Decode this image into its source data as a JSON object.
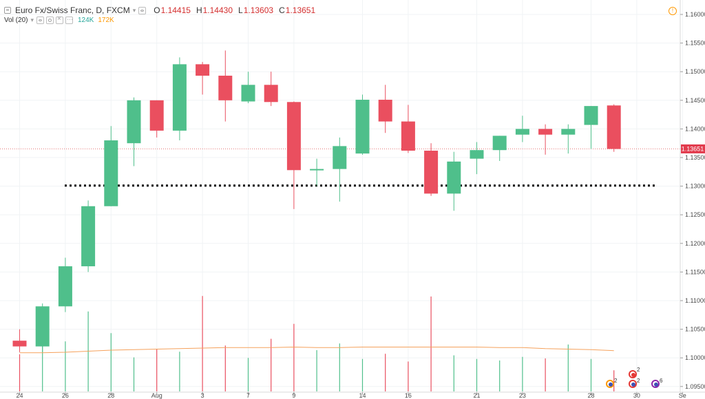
{
  "header": {
    "symbol_title": "Euro Fx/Swiss Franc, D, FXCM",
    "open_label": "O",
    "open_value": "1.14415",
    "high_label": "H",
    "high_value": "1.14430",
    "low_label": "L",
    "low_value": "1.13603",
    "close_label": "C",
    "close_value": "1.13651",
    "volume_indicator": "Vol (20)",
    "volume_value": "124K",
    "volume_ma_value": "172K"
  },
  "colors": {
    "up": "#4fbf8b",
    "down": "#ea4f5f",
    "vol_ma": "#f5a15b",
    "price_line": "#e57373",
    "support": "#000000",
    "accent": "#ff9800"
  },
  "icons": [
    "collapse-toggle-icon",
    "chevron-down-icon",
    "eye-icon",
    "gear-icon",
    "close-icon",
    "more-icon",
    "alert-icon",
    "event-icon"
  ],
  "current_price_tag": "1.13651",
  "events": {
    "counts": [
      "2",
      "2",
      "2",
      "6"
    ]
  },
  "chart_data": {
    "type": "candlestick",
    "x_tick_labels": [
      "24",
      "26",
      "28",
      "Aug",
      "3",
      "7",
      "9",
      "14",
      "16",
      "21",
      "23",
      "28",
      "30",
      "Se"
    ],
    "y_tick_labels": [
      "1.16000",
      "1.15500",
      "1.15000",
      "1.14500",
      "1.14000",
      "1.13500",
      "1.13000",
      "1.12500",
      "1.12000",
      "1.11500",
      "1.11000",
      "1.10500",
      "1.10000",
      "1.09500"
    ],
    "ylim": [
      1.0935,
      1.1617
    ],
    "candles": [
      {
        "o": 1.103,
        "h": 1.105,
        "l": 1.101,
        "c": 1.102
      },
      {
        "o": 1.102,
        "h": 1.1095,
        "l": 1.101,
        "c": 1.109
      },
      {
        "o": 1.109,
        "h": 1.1175,
        "l": 1.108,
        "c": 1.116
      },
      {
        "o": 1.116,
        "h": 1.1275,
        "l": 1.115,
        "c": 1.1265
      },
      {
        "o": 1.1265,
        "h": 1.1405,
        "l": 1.1265,
        "c": 1.138
      },
      {
        "o": 1.1375,
        "h": 1.1455,
        "l": 1.1335,
        "c": 1.145
      },
      {
        "o": 1.145,
        "h": 1.145,
        "l": 1.1385,
        "c": 1.1397
      },
      {
        "o": 1.1397,
        "h": 1.1525,
        "l": 1.138,
        "c": 1.1513
      },
      {
        "o": 1.1513,
        "h": 1.1517,
        "l": 1.146,
        "c": 1.1493
      },
      {
        "o": 1.1493,
        "h": 1.1537,
        "l": 1.1413,
        "c": 1.145
      },
      {
        "o": 1.1448,
        "h": 1.15,
        "l": 1.1445,
        "c": 1.1477
      },
      {
        "o": 1.1477,
        "h": 1.15,
        "l": 1.144,
        "c": 1.1447
      },
      {
        "o": 1.1447,
        "h": 1.1448,
        "l": 1.126,
        "c": 1.1328
      },
      {
        "o": 1.1328,
        "h": 1.1348,
        "l": 1.13,
        "c": 1.133
      },
      {
        "o": 1.133,
        "h": 1.1385,
        "l": 1.1273,
        "c": 1.137
      },
      {
        "o": 1.1357,
        "h": 1.146,
        "l": 1.1355,
        "c": 1.1451
      },
      {
        "o": 1.1451,
        "h": 1.1477,
        "l": 1.1393,
        "c": 1.1413
      },
      {
        "o": 1.1413,
        "h": 1.1442,
        "l": 1.1358,
        "c": 1.1362
      },
      {
        "o": 1.1362,
        "h": 1.1375,
        "l": 1.1283,
        "c": 1.1287
      },
      {
        "o": 1.1287,
        "h": 1.136,
        "l": 1.1257,
        "c": 1.1343
      },
      {
        "o": 1.1348,
        "h": 1.1377,
        "l": 1.1321,
        "c": 1.1363
      },
      {
        "o": 1.1363,
        "h": 1.1388,
        "l": 1.1344,
        "c": 1.1388
      },
      {
        "o": 1.139,
        "h": 1.1423,
        "l": 1.1377,
        "c": 1.14
      },
      {
        "o": 1.14,
        "h": 1.1408,
        "l": 1.1355,
        "c": 1.139
      },
      {
        "o": 1.139,
        "h": 1.1408,
        "l": 1.1357,
        "c": 1.14
      },
      {
        "o": 1.1407,
        "h": 1.144,
        "l": 1.1365,
        "c": 1.144
      },
      {
        "o": 1.1441,
        "h": 1.1443,
        "l": 1.136,
        "c": 1.1365
      }
    ],
    "volume": [
      72,
      88,
      97,
      155,
      113,
      66,
      82,
      77,
      185,
      89,
      65,
      102,
      131,
      80,
      93,
      63,
      73,
      58,
      184,
      70,
      63,
      60,
      67,
      64,
      91,
      63,
      41
    ],
    "volume_ma": [
      75,
      75,
      76,
      78,
      80,
      81,
      82,
      83,
      84,
      85,
      85,
      85,
      86,
      85,
      85,
      86,
      86,
      86,
      86,
      86,
      86,
      85,
      85,
      83,
      82,
      81,
      79
    ],
    "volume_max": 200,
    "support_level": 1.1301,
    "last_price": 1.13651,
    "grid": true
  }
}
